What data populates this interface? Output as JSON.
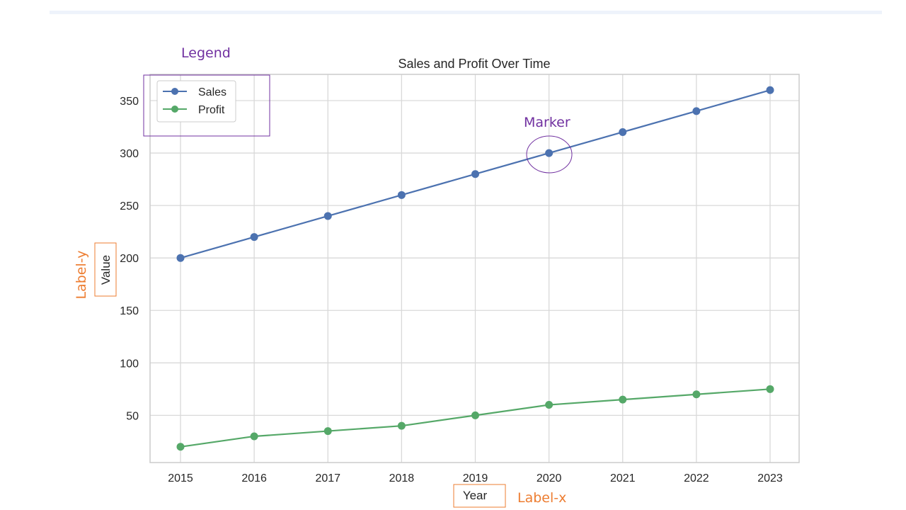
{
  "chart_data": {
    "type": "line",
    "title": "Sales and Profit Over Time",
    "xlabel": "Year",
    "ylabel": "Value",
    "x": [
      2015,
      2016,
      2017,
      2018,
      2019,
      2020,
      2021,
      2022,
      2023
    ],
    "ylim": [
      5,
      375
    ],
    "yticks": [
      50,
      100,
      150,
      200,
      250,
      300,
      350
    ],
    "grid": true,
    "legend_position": "top-left",
    "series": [
      {
        "name": "Sales",
        "color": "#4c72b0",
        "values": [
          200,
          220,
          240,
          260,
          280,
          300,
          320,
          340,
          360
        ]
      },
      {
        "name": "Profit",
        "color": "#55a868",
        "values": [
          20,
          30,
          35,
          40,
          50,
          60,
          65,
          70,
          75
        ]
      }
    ]
  },
  "annotations": {
    "legend": "Legend",
    "marker": "Marker",
    "label_y": "Label-y",
    "label_x": "Label-x",
    "purple_color": "#7030a0",
    "orange_color": "#ed7d31"
  }
}
